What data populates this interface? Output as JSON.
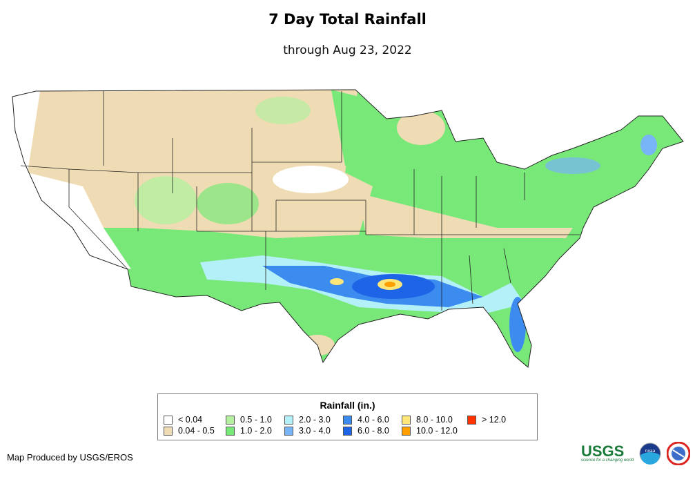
{
  "title": "7 Day Total Rainfall",
  "subtitle": "through Aug 23, 2022",
  "legend": {
    "title": "Rainfall (in.)",
    "items": [
      {
        "label": "< 0.04",
        "color": "#ffffff"
      },
      {
        "label": "0.04 - 0.5",
        "color": "#f0dcb4"
      },
      {
        "label": "0.5 - 1.0",
        "color": "#b4f0a0"
      },
      {
        "label": "1.0 - 2.0",
        "color": "#78e878"
      },
      {
        "label": "2.0 - 3.0",
        "color": "#b4f0f8"
      },
      {
        "label": "3.0 - 4.0",
        "color": "#78b4f8"
      },
      {
        "label": "4.0 - 6.0",
        "color": "#3c8cf0"
      },
      {
        "label": "6.0 - 8.0",
        "color": "#1e64e6"
      },
      {
        "label": "8.0 - 10.0",
        "color": "#ffe678"
      },
      {
        "label": "10.0 - 12.0",
        "color": "#ffa000"
      },
      {
        "label": "> 12.0",
        "color": "#ff3200"
      }
    ]
  },
  "credit": "Map Produced by USGS/EROS",
  "logos": {
    "usgs": "USGS",
    "usgs_tagline": "science for a changing world",
    "noaa": "noaa",
    "nws": "NATIONAL WEATHER SERVICE"
  }
}
